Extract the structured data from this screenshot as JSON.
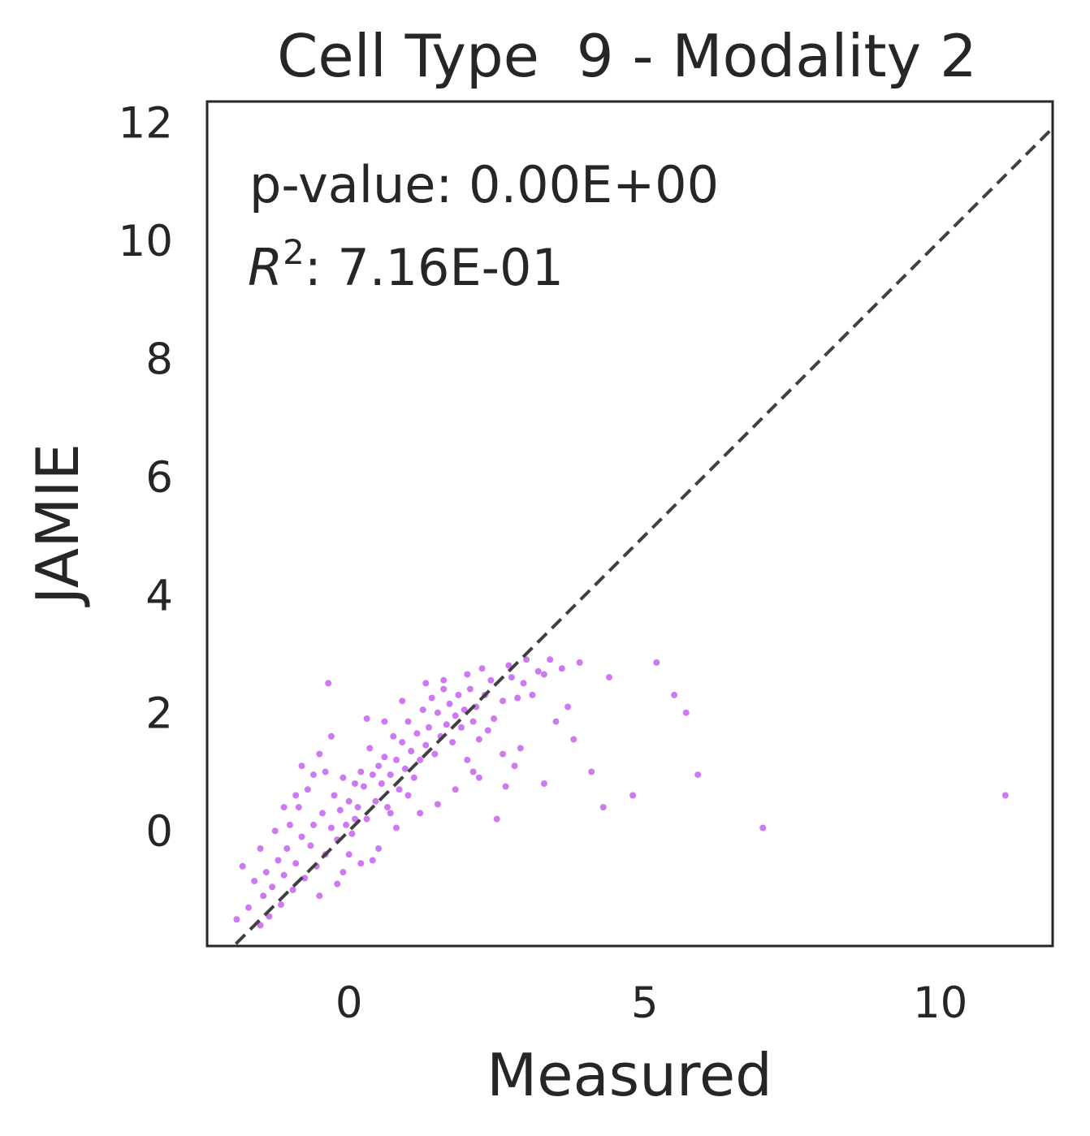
{
  "chart_data": {
    "type": "scatter",
    "title": "Cell Type  9 - Modality 2",
    "xlabel": "Measured",
    "ylabel": "JAMIE",
    "xlim": [
      -2.4,
      11.9
    ],
    "ylim": [
      -1.95,
      12.35
    ],
    "xticks": [
      0,
      5,
      10
    ],
    "yticks": [
      0,
      2,
      4,
      6,
      8,
      10,
      12
    ],
    "annotations": {
      "pvalue": "p-value: 0.00E+00",
      "r2_prefix": "R",
      "r2_sup": "2",
      "r2_suffix": ": 7.16E-01"
    },
    "reference_line": {
      "style": "dashed",
      "slope": 1,
      "intercept": 0
    },
    "colors": {
      "points": "#cd7af2",
      "reference_line": "#404040",
      "frame": "#262626"
    },
    "grid": false,
    "legend": "none",
    "series": [
      {
        "points": [
          [
            11.1,
            0.6
          ],
          [
            7.0,
            0.05
          ],
          [
            5.9,
            0.95
          ],
          [
            5.7,
            2.0
          ],
          [
            5.5,
            2.3
          ],
          [
            5.2,
            2.85
          ],
          [
            4.8,
            0.6
          ],
          [
            4.3,
            0.4
          ],
          [
            4.4,
            2.6
          ],
          [
            4.1,
            1.0
          ],
          [
            3.9,
            2.85
          ],
          [
            3.8,
            1.55
          ],
          [
            3.7,
            2.1
          ],
          [
            3.6,
            2.75
          ],
          [
            3.5,
            1.85
          ],
          [
            3.4,
            2.9
          ],
          [
            3.3,
            2.65
          ],
          [
            3.2,
            2.7
          ],
          [
            3.1,
            2.3
          ],
          [
            3.0,
            2.9
          ],
          [
            2.95,
            2.5
          ],
          [
            2.9,
            1.4
          ],
          [
            2.85,
            2.25
          ],
          [
            2.8,
            1.1
          ],
          [
            2.75,
            2.6
          ],
          [
            2.7,
            2.8
          ],
          [
            2.65,
            0.75
          ],
          [
            2.6,
            2.2
          ],
          [
            2.5,
            0.2
          ],
          [
            2.45,
            1.9
          ],
          [
            2.4,
            2.55
          ],
          [
            2.35,
            1.7
          ],
          [
            2.3,
            2.3
          ],
          [
            2.25,
            2.75
          ],
          [
            2.2,
            1.55
          ],
          [
            2.15,
            2.1
          ],
          [
            2.1,
            1.85
          ],
          [
            2.05,
            2.4
          ],
          [
            2.0,
            1.2
          ],
          [
            1.95,
            2.05
          ],
          [
            1.9,
            1.75
          ],
          [
            1.85,
            2.3
          ],
          [
            1.8,
            1.95
          ],
          [
            1.75,
            1.5
          ],
          [
            1.7,
            2.15
          ],
          [
            1.65,
            1.8
          ],
          [
            1.6,
            2.4
          ],
          [
            1.55,
            1.6
          ],
          [
            1.5,
            2.0
          ],
          [
            1.45,
            1.3
          ],
          [
            1.4,
            2.25
          ],
          [
            1.35,
            1.75
          ],
          [
            1.3,
            1.45
          ],
          [
            1.25,
            2.05
          ],
          [
            1.2,
            1.2
          ],
          [
            1.15,
            1.65
          ],
          [
            1.1,
            0.9
          ],
          [
            1.05,
            1.35
          ],
          [
            1.0,
            1.85
          ],
          [
            0.95,
            1.05
          ],
          [
            0.9,
            1.5
          ],
          [
            0.85,
            0.7
          ],
          [
            0.8,
            1.2
          ],
          [
            0.75,
            1.6
          ],
          [
            0.7,
            0.95
          ],
          [
            0.65,
            0.4
          ],
          [
            0.6,
            1.25
          ],
          [
            0.55,
            0.8
          ],
          [
            0.5,
            1.1
          ],
          [
            0.45,
            0.5
          ],
          [
            0.4,
            0.95
          ],
          [
            0.35,
            1.4
          ],
          [
            0.3,
            0.2
          ],
          [
            0.25,
            0.75
          ],
          [
            0.2,
            1.0
          ],
          [
            0.15,
            0.4
          ],
          [
            0.1,
            0.8
          ],
          [
            0.05,
            -0.05
          ],
          [
            0.0,
            0.5
          ],
          [
            -0.05,
            0.1
          ],
          [
            -0.1,
            0.9
          ],
          [
            -0.15,
            0.35
          ],
          [
            -0.2,
            -0.15
          ],
          [
            -0.25,
            0.6
          ],
          [
            -0.3,
            0.05
          ],
          [
            -0.35,
            2.5
          ],
          [
            -0.4,
            -0.4
          ],
          [
            -0.45,
            0.3
          ],
          [
            -0.5,
            1.3
          ],
          [
            -0.55,
            -0.6
          ],
          [
            -0.6,
            0.1
          ],
          [
            -0.65,
            -0.25
          ],
          [
            -0.7,
            0.7
          ],
          [
            -0.75,
            -0.8
          ],
          [
            -0.8,
            -0.1
          ],
          [
            -0.85,
            0.4
          ],
          [
            -0.9,
            -0.55
          ],
          [
            -0.95,
            -1.0
          ],
          [
            -1.0,
            0.1
          ],
          [
            -1.05,
            -0.3
          ],
          [
            -1.1,
            -0.75
          ],
          [
            -1.15,
            -1.25
          ],
          [
            -1.2,
            -0.5
          ],
          [
            -1.25,
            0.0
          ],
          [
            -1.3,
            -0.95
          ],
          [
            -1.35,
            -1.45
          ],
          [
            -1.4,
            -0.7
          ],
          [
            -1.45,
            -1.1
          ],
          [
            -1.5,
            -1.6
          ],
          [
            -1.6,
            -0.85
          ],
          [
            -1.7,
            -1.3
          ],
          [
            -1.8,
            -0.6
          ],
          [
            -1.9,
            -1.5
          ],
          [
            -1.5,
            -0.3
          ],
          [
            -0.8,
            1.1
          ],
          [
            -0.6,
            0.95
          ],
          [
            -0.3,
            1.6
          ],
          [
            -0.4,
            1.0
          ],
          [
            0.3,
            1.9
          ],
          [
            0.6,
            1.85
          ],
          [
            0.9,
            2.2
          ],
          [
            1.3,
            2.5
          ],
          [
            1.6,
            2.55
          ],
          [
            2.0,
            2.65
          ],
          [
            2.2,
            0.9
          ],
          [
            1.5,
            0.45
          ],
          [
            1.2,
            0.3
          ],
          [
            0.8,
            0.05
          ],
          [
            0.5,
            -0.3
          ],
          [
            0.2,
            -0.55
          ],
          [
            -0.1,
            -0.7
          ],
          [
            1.8,
            0.7
          ],
          [
            2.1,
            1.0
          ],
          [
            1.0,
            0.6
          ],
          [
            0.4,
            -0.5
          ],
          [
            -0.2,
            -0.9
          ],
          [
            3.3,
            0.8
          ],
          [
            2.6,
            1.3
          ],
          [
            0.7,
            0.3
          ],
          [
            -0.9,
            0.6
          ],
          [
            -1.1,
            0.4
          ],
          [
            -0.5,
            -1.1
          ],
          [
            0.0,
            -0.4
          ],
          [
            0.1,
            0.2
          ]
        ]
      }
    ]
  }
}
